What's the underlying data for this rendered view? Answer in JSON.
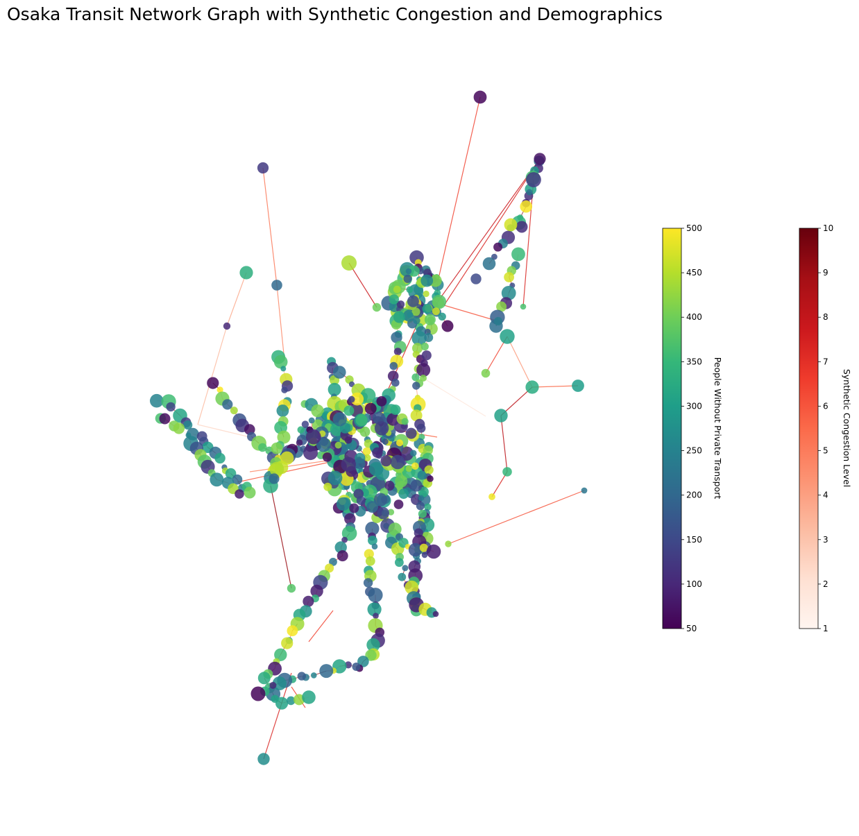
{
  "figure": {
    "title": "Osaka Transit Network Graph with Synthetic Congestion and Demographics"
  },
  "colorbars": {
    "population": {
      "label": "People Without Private Transport",
      "colormap": "viridis",
      "min": 50,
      "max": 500,
      "ticks": [
        "50",
        "100",
        "150",
        "200",
        "250",
        "300",
        "350",
        "400",
        "450",
        "500"
      ],
      "colors": [
        "#440154",
        "#482878",
        "#3e4989",
        "#31688e",
        "#26828e",
        "#1f9e89",
        "#35b779",
        "#6ece58",
        "#b5de2b",
        "#fde725"
      ]
    },
    "congestion": {
      "label": "Synthetic Congestion Level",
      "colormap": "Reds",
      "min": 1,
      "max": 10,
      "ticks": [
        "1",
        "2",
        "3",
        "4",
        "5",
        "6",
        "7",
        "8",
        "9",
        "10"
      ],
      "colors": [
        "#fff5f0",
        "#fee0d2",
        "#fcbba1",
        "#fc9272",
        "#fb6a4a",
        "#ef3b2c",
        "#cb181d",
        "#a50f15",
        "#67000d"
      ]
    }
  }
}
